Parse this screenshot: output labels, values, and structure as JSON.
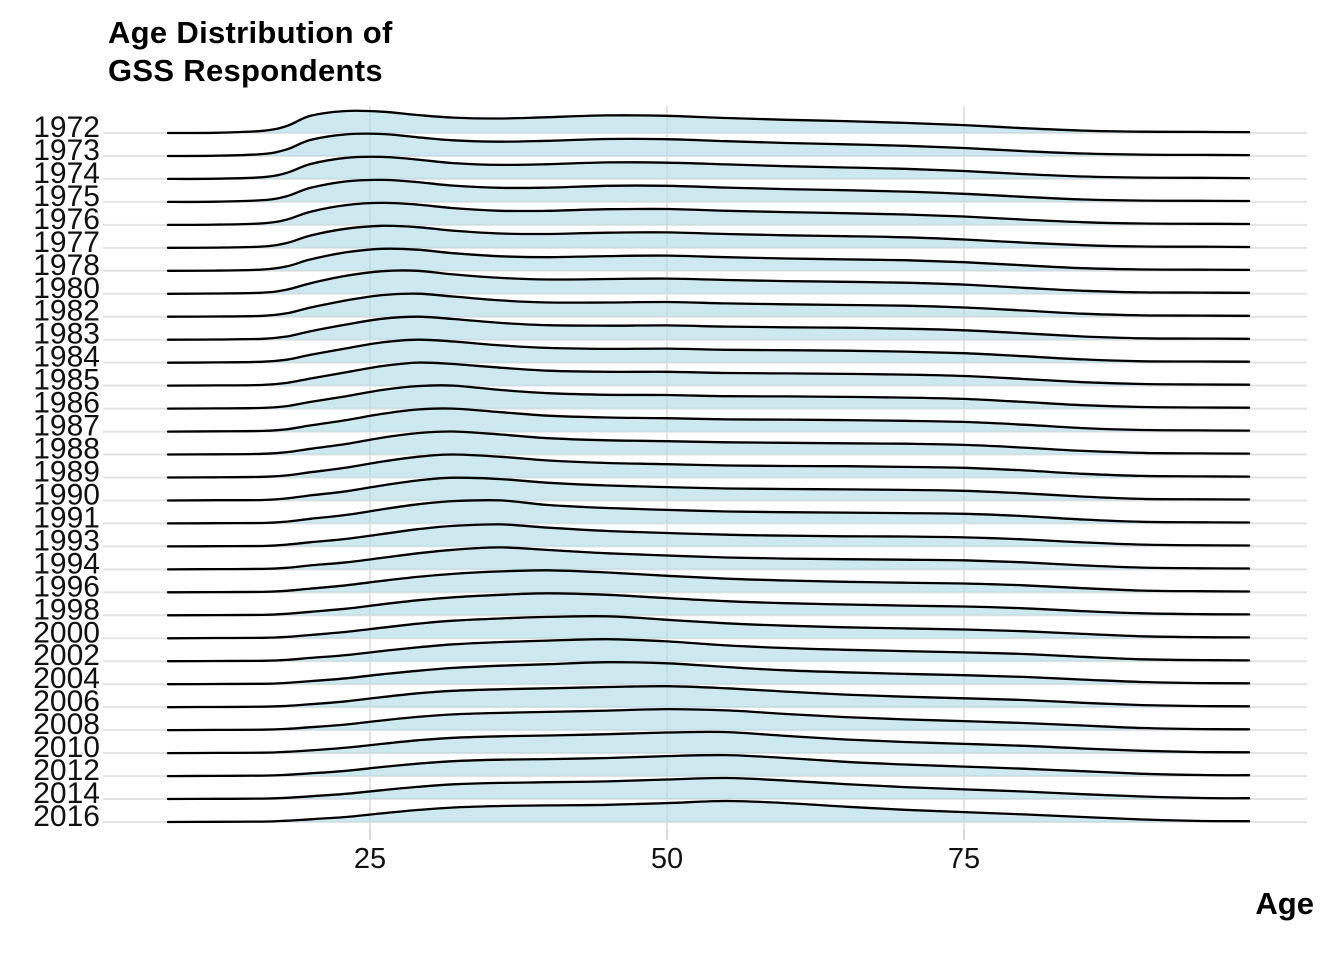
{
  "title": {
    "line1": "Age Distribution of",
    "line2": "GSS Respondents"
  },
  "axes": {
    "x": {
      "title": "Age",
      "tick_labels": [
        "25",
        "50",
        "75"
      ],
      "tick_values": [
        25,
        50,
        75
      ]
    },
    "y": {
      "tick_labels": [
        "1972",
        "1973",
        "1974",
        "1975",
        "1976",
        "1977",
        "1978",
        "1980",
        "1982",
        "1983",
        "1984",
        "1985",
        "1986",
        "1987",
        "1988",
        "1989",
        "1990",
        "1991",
        "1993",
        "1994",
        "1996",
        "1998",
        "2000",
        "2002",
        "2004",
        "2006",
        "2008",
        "2010",
        "2012",
        "2014",
        "2016"
      ]
    }
  },
  "colors": {
    "background": "#FFFFFF",
    "ridge_fill": "#ADD8E6",
    "ridge_fill_opacity": 0.6,
    "ridge_stroke": "#000000",
    "gridline": "#E3E3E3",
    "tick_mark": "#D8D8D8",
    "axis_text": "#111111",
    "title_text": "#000000"
  },
  "chart_data": {
    "type": "area",
    "subtype": "ridgeline",
    "title": "Age Distribution of GSS Respondents",
    "xlabel": "Age",
    "ylabel": "",
    "legend": "none",
    "grid": "light gray; vertical at x ticks, horizontal at each year baseline",
    "xlim": [
      8,
      99
    ],
    "x_gridlines": [
      25,
      50,
      75
    ],
    "x_ages": [
      8,
      12,
      16,
      18,
      20,
      23,
      26,
      29,
      32,
      36,
      40,
      45,
      50,
      55,
      60,
      65,
      70,
      75,
      80,
      85,
      90,
      95,
      99
    ],
    "values_note": "relative density (row peak = 1) estimated from the figure",
    "series": [
      {
        "name": "1972",
        "values": [
          0,
          0.01,
          0.1,
          0.32,
          0.78,
          1.0,
          0.97,
          0.82,
          0.7,
          0.66,
          0.72,
          0.8,
          0.78,
          0.68,
          0.6,
          0.54,
          0.46,
          0.36,
          0.22,
          0.11,
          0.06,
          0.05,
          0.04
        ]
      },
      {
        "name": "1973",
        "values": [
          0,
          0.01,
          0.09,
          0.3,
          0.73,
          0.98,
          1.0,
          0.85,
          0.71,
          0.65,
          0.69,
          0.77,
          0.76,
          0.67,
          0.59,
          0.53,
          0.46,
          0.36,
          0.22,
          0.11,
          0.06,
          0.05,
          0.04
        ]
      },
      {
        "name": "1974",
        "values": [
          0,
          0.01,
          0.08,
          0.28,
          0.68,
          0.96,
          1.0,
          0.88,
          0.72,
          0.64,
          0.67,
          0.75,
          0.74,
          0.66,
          0.58,
          0.52,
          0.46,
          0.36,
          0.22,
          0.11,
          0.06,
          0.05,
          0.04
        ]
      },
      {
        "name": "1975",
        "values": [
          0,
          0.01,
          0.08,
          0.26,
          0.64,
          0.93,
          1.0,
          0.9,
          0.74,
          0.64,
          0.65,
          0.73,
          0.73,
          0.65,
          0.58,
          0.53,
          0.47,
          0.37,
          0.23,
          0.11,
          0.06,
          0.05,
          0.04
        ]
      },
      {
        "name": "1976",
        "values": [
          0,
          0.01,
          0.07,
          0.24,
          0.6,
          0.9,
          1.0,
          0.92,
          0.76,
          0.64,
          0.64,
          0.71,
          0.72,
          0.64,
          0.58,
          0.53,
          0.47,
          0.38,
          0.24,
          0.12,
          0.06,
          0.05,
          0.04
        ]
      },
      {
        "name": "1977",
        "values": [
          0,
          0.01,
          0.06,
          0.22,
          0.56,
          0.87,
          1.0,
          0.94,
          0.78,
          0.65,
          0.63,
          0.69,
          0.7,
          0.63,
          0.57,
          0.53,
          0.48,
          0.38,
          0.24,
          0.12,
          0.06,
          0.05,
          0.04
        ]
      },
      {
        "name": "1978",
        "values": [
          0,
          0.01,
          0.06,
          0.2,
          0.52,
          0.84,
          1.0,
          0.96,
          0.8,
          0.66,
          0.62,
          0.67,
          0.69,
          0.62,
          0.56,
          0.52,
          0.48,
          0.39,
          0.25,
          0.12,
          0.06,
          0.05,
          0.04
        ]
      },
      {
        "name": "1980",
        "values": [
          0,
          0.01,
          0.05,
          0.18,
          0.46,
          0.78,
          0.98,
          1.0,
          0.84,
          0.69,
          0.62,
          0.64,
          0.66,
          0.6,
          0.55,
          0.52,
          0.48,
          0.4,
          0.26,
          0.13,
          0.06,
          0.05,
          0.04
        ]
      },
      {
        "name": "1982",
        "values": [
          0,
          0.01,
          0.04,
          0.15,
          0.4,
          0.71,
          0.94,
          1.0,
          0.88,
          0.71,
          0.62,
          0.62,
          0.64,
          0.58,
          0.54,
          0.51,
          0.48,
          0.4,
          0.27,
          0.13,
          0.06,
          0.05,
          0.04
        ]
      },
      {
        "name": "1983",
        "values": [
          0,
          0.01,
          0.04,
          0.14,
          0.37,
          0.66,
          0.91,
          1.0,
          0.9,
          0.73,
          0.63,
          0.61,
          0.62,
          0.57,
          0.54,
          0.52,
          0.48,
          0.41,
          0.28,
          0.14,
          0.06,
          0.05,
          0.04
        ]
      },
      {
        "name": "1984",
        "values": [
          0,
          0.01,
          0.04,
          0.13,
          0.34,
          0.62,
          0.88,
          1.0,
          0.92,
          0.75,
          0.64,
          0.6,
          0.61,
          0.56,
          0.54,
          0.52,
          0.48,
          0.41,
          0.28,
          0.14,
          0.06,
          0.05,
          0.04
        ]
      },
      {
        "name": "1985",
        "values": [
          0,
          0.01,
          0.03,
          0.12,
          0.31,
          0.58,
          0.85,
          1.0,
          0.94,
          0.78,
          0.65,
          0.6,
          0.6,
          0.55,
          0.53,
          0.51,
          0.48,
          0.42,
          0.29,
          0.15,
          0.07,
          0.05,
          0.04
        ]
      },
      {
        "name": "1986",
        "values": [
          0,
          0.01,
          0.03,
          0.11,
          0.29,
          0.54,
          0.81,
          0.98,
          1.0,
          0.81,
          0.67,
          0.6,
          0.59,
          0.54,
          0.53,
          0.51,
          0.48,
          0.42,
          0.29,
          0.15,
          0.07,
          0.05,
          0.04
        ]
      },
      {
        "name": "1987",
        "values": [
          0,
          0.01,
          0.03,
          0.1,
          0.27,
          0.5,
          0.77,
          0.96,
          1.0,
          0.84,
          0.69,
          0.61,
          0.58,
          0.53,
          0.52,
          0.5,
          0.47,
          0.42,
          0.3,
          0.15,
          0.07,
          0.05,
          0.04
        ]
      },
      {
        "name": "1988",
        "values": [
          0,
          0.01,
          0.03,
          0.1,
          0.25,
          0.46,
          0.73,
          0.93,
          1.0,
          0.87,
          0.71,
          0.62,
          0.58,
          0.53,
          0.51,
          0.49,
          0.47,
          0.42,
          0.3,
          0.16,
          0.07,
          0.05,
          0.04
        ]
      },
      {
        "name": "1989",
        "values": [
          0,
          0.01,
          0.03,
          0.09,
          0.23,
          0.43,
          0.69,
          0.9,
          1.0,
          0.9,
          0.74,
          0.63,
          0.58,
          0.52,
          0.5,
          0.49,
          0.46,
          0.42,
          0.31,
          0.16,
          0.07,
          0.05,
          0.04
        ]
      },
      {
        "name": "1990",
        "values": [
          0,
          0.01,
          0.02,
          0.09,
          0.22,
          0.4,
          0.65,
          0.87,
          0.99,
          0.93,
          0.77,
          0.65,
          0.58,
          0.52,
          0.5,
          0.48,
          0.46,
          0.42,
          0.31,
          0.17,
          0.07,
          0.05,
          0.04
        ]
      },
      {
        "name": "1991",
        "values": [
          0,
          0.01,
          0.02,
          0.08,
          0.2,
          0.37,
          0.61,
          0.83,
          0.97,
          1.0,
          0.8,
          0.67,
          0.59,
          0.52,
          0.49,
          0.47,
          0.45,
          0.42,
          0.32,
          0.17,
          0.07,
          0.05,
          0.04
        ]
      },
      {
        "name": "1993",
        "values": [
          0,
          0.01,
          0.02,
          0.08,
          0.19,
          0.34,
          0.56,
          0.78,
          0.93,
          1.0,
          0.85,
          0.7,
          0.61,
          0.53,
          0.49,
          0.46,
          0.45,
          0.41,
          0.32,
          0.18,
          0.08,
          0.05,
          0.04
        ]
      },
      {
        "name": "1994",
        "values": [
          0,
          0.01,
          0.02,
          0.07,
          0.18,
          0.32,
          0.52,
          0.73,
          0.89,
          1.0,
          0.88,
          0.73,
          0.63,
          0.54,
          0.49,
          0.46,
          0.44,
          0.41,
          0.32,
          0.18,
          0.08,
          0.05,
          0.04
        ]
      },
      {
        "name": "1996",
        "values": [
          0,
          0.01,
          0.02,
          0.07,
          0.17,
          0.32,
          0.52,
          0.7,
          0.84,
          0.95,
          1.0,
          0.9,
          0.75,
          0.62,
          0.54,
          0.48,
          0.44,
          0.4,
          0.32,
          0.19,
          0.08,
          0.05,
          0.04
        ]
      },
      {
        "name": "1998",
        "values": [
          0,
          0.01,
          0.02,
          0.07,
          0.16,
          0.3,
          0.5,
          0.68,
          0.82,
          0.93,
          1.0,
          0.93,
          0.78,
          0.64,
          0.55,
          0.49,
          0.44,
          0.4,
          0.32,
          0.19,
          0.09,
          0.05,
          0.04
        ]
      },
      {
        "name": "2000",
        "values": [
          0,
          0.01,
          0.02,
          0.06,
          0.15,
          0.29,
          0.48,
          0.66,
          0.8,
          0.9,
          0.97,
          1.0,
          0.84,
          0.68,
          0.57,
          0.5,
          0.45,
          0.4,
          0.32,
          0.2,
          0.09,
          0.05,
          0.04
        ]
      },
      {
        "name": "2002",
        "values": [
          0,
          0.01,
          0.02,
          0.06,
          0.15,
          0.28,
          0.46,
          0.63,
          0.77,
          0.87,
          0.94,
          1.0,
          0.9,
          0.72,
          0.6,
          0.52,
          0.46,
          0.4,
          0.33,
          0.2,
          0.09,
          0.05,
          0.04
        ]
      },
      {
        "name": "2004",
        "values": [
          0,
          0.01,
          0.02,
          0.06,
          0.14,
          0.27,
          0.45,
          0.61,
          0.74,
          0.84,
          0.91,
          1.0,
          0.95,
          0.78,
          0.63,
          0.54,
          0.47,
          0.41,
          0.33,
          0.21,
          0.1,
          0.05,
          0.04
        ]
      },
      {
        "name": "2006",
        "values": [
          0,
          0.01,
          0.02,
          0.06,
          0.14,
          0.28,
          0.48,
          0.66,
          0.78,
          0.85,
          0.9,
          0.96,
          1.0,
          0.9,
          0.74,
          0.6,
          0.5,
          0.42,
          0.34,
          0.21,
          0.1,
          0.05,
          0.04
        ]
      },
      {
        "name": "2008",
        "values": [
          0,
          0.01,
          0.02,
          0.06,
          0.14,
          0.27,
          0.46,
          0.63,
          0.75,
          0.82,
          0.87,
          0.93,
          1.0,
          0.94,
          0.77,
          0.62,
          0.51,
          0.43,
          0.34,
          0.22,
          0.1,
          0.05,
          0.04
        ]
      },
      {
        "name": "2010",
        "values": [
          0,
          0.01,
          0.02,
          0.06,
          0.13,
          0.26,
          0.44,
          0.61,
          0.73,
          0.8,
          0.84,
          0.9,
          0.98,
          1.0,
          0.82,
          0.65,
          0.53,
          0.44,
          0.35,
          0.22,
          0.11,
          0.05,
          0.04
        ]
      },
      {
        "name": "2012",
        "values": [
          0,
          0.01,
          0.02,
          0.06,
          0.13,
          0.25,
          0.43,
          0.59,
          0.71,
          0.78,
          0.81,
          0.86,
          0.95,
          1.0,
          0.86,
          0.68,
          0.55,
          0.45,
          0.35,
          0.23,
          0.11,
          0.05,
          0.04
        ]
      },
      {
        "name": "2014",
        "values": [
          0,
          0.01,
          0.02,
          0.06,
          0.13,
          0.25,
          0.42,
          0.58,
          0.7,
          0.77,
          0.8,
          0.84,
          0.93,
          1.0,
          0.88,
          0.71,
          0.57,
          0.46,
          0.36,
          0.23,
          0.12,
          0.05,
          0.04
        ]
      },
      {
        "name": "2016",
        "values": [
          0,
          0.01,
          0.02,
          0.06,
          0.13,
          0.24,
          0.41,
          0.57,
          0.69,
          0.76,
          0.79,
          0.82,
          0.9,
          1.0,
          0.9,
          0.73,
          0.58,
          0.47,
          0.36,
          0.24,
          0.12,
          0.05,
          0.04
        ]
      }
    ]
  }
}
